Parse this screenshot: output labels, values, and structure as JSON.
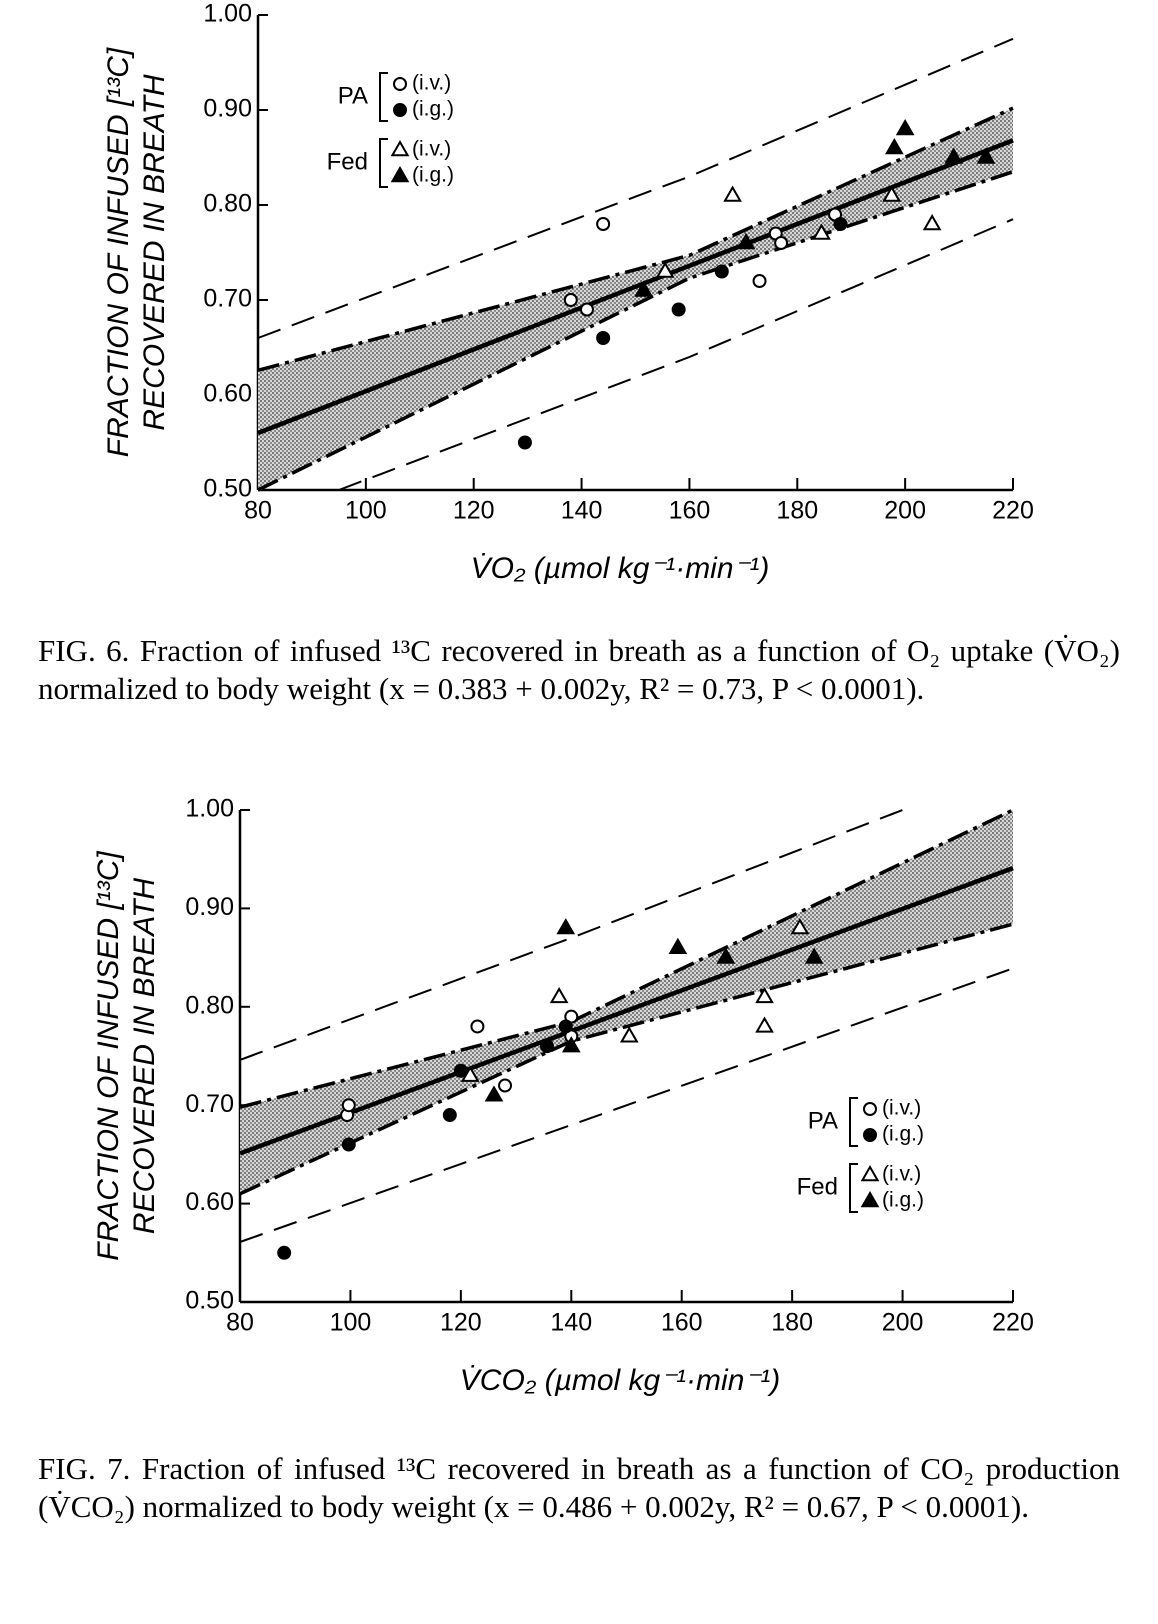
{
  "chart_data": [
    {
      "type": "scatter",
      "xlabel": "V̇O₂ (µmol kg⁻¹·min⁻¹)",
      "ylabel": [
        "FRACTION OF INFUSED [¹³C]",
        "RECOVERED IN BREATH"
      ],
      "xlim": [
        80,
        220
      ],
      "ylim": [
        0.5,
        1.0
      ],
      "xticks": [
        80,
        100,
        120,
        140,
        160,
        180,
        200,
        220
      ],
      "yticks": [
        {
          "value": 0.5,
          "label": "0.50"
        },
        {
          "value": 0.6,
          "label": "0.60"
        },
        {
          "value": 0.7,
          "label": "0.70"
        },
        {
          "value": 0.8,
          "label": "0.80"
        },
        {
          "value": 0.9,
          "label": "0.90"
        },
        {
          "value": 1.0,
          "label": "1.00"
        }
      ],
      "legend": "upper left",
      "series": [
        {
          "group": "PA",
          "name": "(i.v.)",
          "marker": "circle",
          "filled": false,
          "color": "#000000",
          "x": [
            138,
            141,
            144,
            173,
            176,
            177,
            187
          ],
          "values": [
            0.7,
            0.69,
            0.78,
            0.72,
            0.77,
            0.76,
            0.79
          ]
        },
        {
          "group": "PA",
          "name": "(i.g.)",
          "marker": "circle",
          "filled": true,
          "color": "#000000",
          "x": [
            129.5,
            144,
            158,
            166,
            188
          ],
          "values": [
            0.55,
            0.66,
            0.69,
            0.73,
            0.78
          ]
        },
        {
          "group": "Fed",
          "name": "(i.v.)",
          "marker": "triangle",
          "filled": false,
          "color": "#000000",
          "x": [
            155.5,
            168,
            184.5,
            197.5,
            205
          ],
          "values": [
            0.73,
            0.81,
            0.77,
            0.81,
            0.78
          ]
        },
        {
          "group": "Fed",
          "name": "(i.g.)",
          "marker": "triangle",
          "filled": true,
          "color": "#000000",
          "x": [
            151.5,
            170.5,
            198,
            200,
            209,
            215
          ],
          "values": [
            0.71,
            0.76,
            0.86,
            0.88,
            0.85,
            0.85
          ]
        }
      ],
      "fit": {
        "x": [
          80,
          220
        ],
        "values": [
          0.56,
          0.868
        ]
      },
      "confidence_band": {
        "x": [
          80,
          160,
          220
        ],
        "upper": [
          0.626,
          0.747,
          0.902
        ],
        "lower": [
          0.5,
          0.723,
          0.835
        ]
      },
      "prediction_band": {
        "upper": {
          "x": [
            80,
            160,
            220
          ],
          "values": [
            0.66,
            0.83,
            0.975
          ]
        },
        "lower": {
          "x": [
            95,
            160,
            220
          ],
          "values": [
            0.5,
            0.64,
            0.785
          ]
        }
      },
      "caption": "FIG. 6. Fraction of infused ¹³C recovered in breath as a function of O₂ uptake (V̇O₂) normalized to body weight (x = 0.383 + 0.002y, R² = 0.73, P < 0.0001)."
    },
    {
      "type": "scatter",
      "xlabel": "V̇CO₂ (µmol kg⁻¹·min⁻¹)",
      "ylabel": [
        "FRACTION OF INFUSED [¹³C]",
        "RECOVERED IN BREATH"
      ],
      "xlim": [
        80,
        220
      ],
      "ylim": [
        0.5,
        1.0
      ],
      "xticks": [
        80,
        100,
        120,
        140,
        160,
        180,
        200,
        220
      ],
      "yticks": [
        {
          "value": 0.5,
          "label": "0.50"
        },
        {
          "value": 0.6,
          "label": "0.60"
        },
        {
          "value": 0.7,
          "label": "0.70"
        },
        {
          "value": 0.8,
          "label": "0.80"
        },
        {
          "value": 0.9,
          "label": "0.90"
        },
        {
          "value": 1.0,
          "label": "1.00"
        }
      ],
      "legend": "center right",
      "series": [
        {
          "group": "PA",
          "name": "(i.v.)",
          "marker": "circle",
          "filled": false,
          "color": "#000000",
          "x": [
            99.4,
            99.7,
            123,
            128,
            140,
            140
          ],
          "values": [
            0.69,
            0.7,
            0.78,
            0.72,
            0.79,
            0.77
          ]
        },
        {
          "group": "PA",
          "name": "(i.g.)",
          "marker": "circle",
          "filled": true,
          "color": "#000000",
          "x": [
            88,
            99.7,
            118,
            120,
            139,
            135.6
          ],
          "values": [
            0.55,
            0.66,
            0.69,
            0.735,
            0.78,
            0.76
          ]
        },
        {
          "group": "Fed",
          "name": "(i.v.)",
          "marker": "triangle",
          "filled": false,
          "color": "#000000",
          "x": [
            121.7,
            137.8,
            150.5,
            175,
            175,
            181.4
          ],
          "values": [
            0.73,
            0.81,
            0.77,
            0.81,
            0.78,
            0.88
          ]
        },
        {
          "group": "Fed",
          "name": "(i.g.)",
          "marker": "triangle",
          "filled": true,
          "color": "#000000",
          "x": [
            126,
            139,
            140,
            159.3,
            168,
            184
          ],
          "values": [
            0.71,
            0.88,
            0.76,
            0.86,
            0.85,
            0.85
          ]
        }
      ],
      "fit": {
        "x": [
          80,
          220
        ],
        "values": [
          0.651,
          0.941
        ]
      },
      "confidence_band": {
        "x": [
          80,
          140,
          220
        ],
        "upper": [
          0.698,
          0.785,
          1.0
        ],
        "lower": [
          0.61,
          0.765,
          0.884
        ]
      },
      "prediction_band": {
        "upper": {
          "x": [
            80,
            140,
            200
          ],
          "values": [
            0.746,
            0.87,
            1.0
          ]
        },
        "lower": {
          "x": [
            80,
            140,
            220
          ],
          "values": [
            0.561,
            0.68,
            0.839
          ]
        }
      },
      "caption": "FIG. 7. Fraction of infused ¹³C recovered in breath as a function of CO₂ production (V̇CO₂) normalized to body weight (x = 0.486 + 0.002y, R² = 0.67, P < 0.0001)."
    }
  ]
}
